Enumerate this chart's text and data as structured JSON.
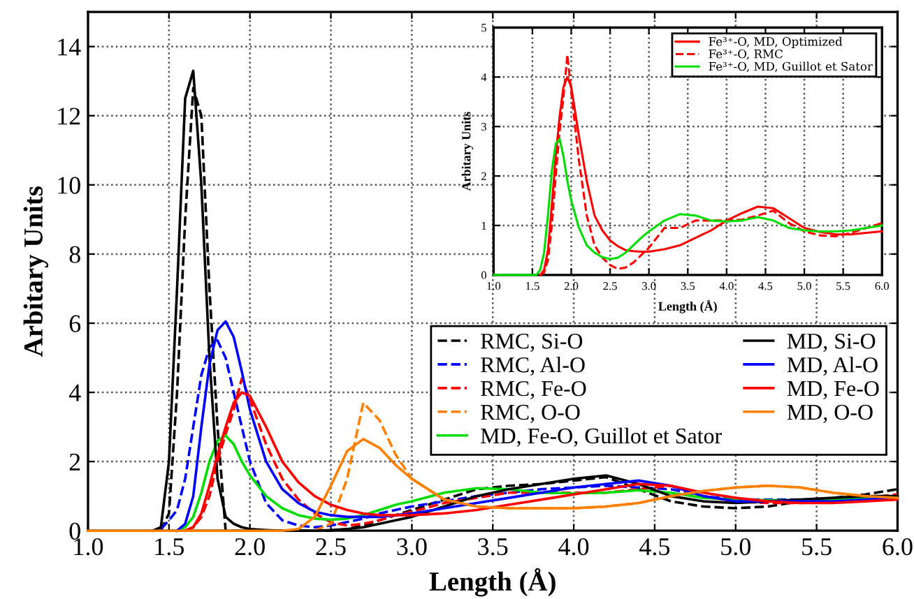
{
  "chart_data": [
    {
      "type": "line",
      "xlabel": "Length (Å)",
      "ylabel": "Arbitary Units",
      "x": [
        1.0,
        1.4,
        1.45,
        1.5,
        1.55,
        1.6,
        1.65,
        1.7,
        1.75,
        1.8,
        1.85,
        1.9,
        1.95,
        2.0,
        2.1,
        2.2,
        2.3,
        2.4,
        2.5,
        2.6,
        2.7,
        2.8,
        2.9,
        3.0,
        3.2,
        3.4,
        3.6,
        3.8,
        4.0,
        4.2,
        4.4,
        4.6,
        4.8,
        5.0,
        5.2,
        5.4,
        5.6,
        5.8,
        6.0
      ],
      "series": [
        {
          "name": "RMC, Si-O",
          "color": "#000000",
          "line_style": "dashed",
          "values": [
            null,
            null,
            0,
            0.5,
            4,
            9,
            12.8,
            12,
            7,
            3,
            0,
            0,
            0,
            0,
            0,
            0,
            0,
            0,
            0,
            0.05,
            0.15,
            0.3,
            0.45,
            0.6,
            0.9,
            1.2,
            1.3,
            1.35,
            1.45,
            1.55,
            1.2,
            0.85,
            0.7,
            0.65,
            0.7,
            0.85,
            0.95,
            1.05,
            1.2
          ]
        },
        {
          "name": "RMC, Al-O",
          "color": "#0000ff",
          "line_style": "dashed",
          "values": [
            null,
            null,
            0.05,
            0.3,
            0.6,
            1.5,
            3,
            4.5,
            5.3,
            5.5,
            5,
            4,
            3,
            2,
            0.8,
            0.3,
            0.15,
            0.1,
            0.15,
            0.25,
            0.35,
            0.5,
            0.6,
            0.7,
            0.85,
            1.0,
            1.1,
            1.2,
            1.25,
            1.3,
            1.25,
            1.2,
            1.0,
            0.9,
            0.9,
            0.9,
            0.9,
            0.9,
            0.9
          ]
        },
        {
          "name": "RMC, Fe-O",
          "color": "#ff0000",
          "line_style": "dashed",
          "values": [
            null,
            null,
            null,
            null,
            null,
            0,
            0.1,
            0.4,
            1.0,
            2.0,
            2.8,
            3.5,
            4.4,
            3.8,
            2.5,
            1.5,
            0.9,
            0.5,
            0.25,
            0.15,
            0.2,
            0.3,
            0.45,
            0.55,
            0.8,
            0.95,
            1.1,
            1.1,
            1.1,
            1.1,
            1.2,
            1.3,
            1.0,
            0.85,
            0.8,
            0.8,
            0.85,
            0.95,
            1.05
          ]
        },
        {
          "name": "RMC, O-O",
          "color": "#ff8000",
          "line_style": "dashed",
          "values": [
            null,
            null,
            null,
            null,
            null,
            null,
            null,
            null,
            null,
            null,
            null,
            null,
            null,
            null,
            null,
            null,
            null,
            0,
            0.2,
            1.5,
            3.7,
            3.2,
            2.2,
            1.5,
            0.9,
            0.7,
            0.65,
            0.65,
            0.65,
            0.7,
            0.8,
            1.0,
            1.15,
            1.25,
            1.3,
            1.25,
            1.1,
            1.0,
            0.95
          ]
        },
        {
          "name": "MD, Fe-O, Guillot et Sator",
          "color": "#00dd00",
          "line_style": "solid",
          "values": [
            null,
            null,
            null,
            null,
            0,
            0.1,
            0.4,
            1.1,
            2.0,
            2.6,
            2.75,
            2.5,
            2.0,
            1.6,
            1.0,
            0.65,
            0.45,
            0.35,
            0.32,
            0.35,
            0.45,
            0.6,
            0.75,
            0.85,
            1.1,
            1.23,
            1.2,
            1.1,
            1.08,
            1.1,
            1.17,
            1.1,
            0.95,
            0.9,
            0.88,
            0.88,
            0.9,
            0.95,
            1.0
          ]
        },
        {
          "name": "MD, Si-O",
          "color": "#000000",
          "line_style": "solid",
          "values": [
            null,
            0,
            0.1,
            2.0,
            7,
            12.5,
            13.3,
            10,
            5,
            1.5,
            0.4,
            0.2,
            0.1,
            0.05,
            0.02,
            0,
            0,
            0,
            0.02,
            0.05,
            0.1,
            0.2,
            0.3,
            0.4,
            0.7,
            1.0,
            1.2,
            1.35,
            1.5,
            1.6,
            1.35,
            1.0,
            0.85,
            0.8,
            0.85,
            0.9,
            0.95,
            1.0,
            1.0
          ]
        },
        {
          "name": "MD, Al-O",
          "color": "#0000ff",
          "line_style": "solid",
          "values": [
            null,
            null,
            null,
            null,
            0,
            0.2,
            1,
            3,
            4.8,
            5.8,
            6.05,
            5.6,
            4.6,
            3.5,
            2.0,
            1.2,
            0.8,
            0.55,
            0.45,
            0.4,
            0.4,
            0.4,
            0.45,
            0.5,
            0.65,
            0.8,
            0.95,
            1.1,
            1.25,
            1.35,
            1.45,
            1.3,
            1.0,
            0.85,
            0.85,
            0.85,
            0.85,
            0.9,
            0.95
          ]
        },
        {
          "name": "MD, Fe-O",
          "color": "#ff0000",
          "line_style": "solid",
          "values": [
            null,
            null,
            null,
            null,
            null,
            0,
            0.1,
            0.5,
            1.3,
            2.2,
            3.0,
            3.7,
            4.0,
            3.9,
            3.0,
            2.0,
            1.4,
            1.0,
            0.75,
            0.6,
            0.5,
            0.45,
            0.45,
            0.45,
            0.5,
            0.6,
            0.75,
            0.9,
            1.05,
            1.2,
            1.35,
            1.3,
            1.1,
            0.95,
            0.85,
            0.8,
            0.8,
            0.85,
            0.9
          ]
        },
        {
          "name": "MD, O-O",
          "color": "#ff8000",
          "line_style": "solid",
          "values": [
            0,
            0,
            0,
            0,
            0,
            0,
            0,
            0,
            0,
            0,
            0,
            0,
            0,
            0,
            0,
            0,
            0.05,
            0.4,
            1.3,
            2.3,
            2.65,
            2.4,
            1.9,
            1.5,
            0.9,
            0.7,
            0.65,
            0.65,
            0.65,
            0.7,
            0.8,
            1.0,
            1.15,
            1.25,
            1.3,
            1.25,
            1.1,
            1.0,
            0.95
          ]
        }
      ],
      "xlim": [
        1,
        6
      ],
      "ylim": [
        0,
        15
      ],
      "xticks": [
        {
          "value": 1,
          "label": "1.0"
        },
        1.5,
        {
          "value": 2,
          "label": "2.0"
        },
        2.5,
        {
          "value": 3,
          "label": "3.0"
        },
        3.5,
        {
          "value": 4,
          "label": "4.0"
        },
        4.5,
        {
          "value": 5,
          "label": "5.0"
        },
        5.5,
        {
          "value": 6,
          "label": "6.0"
        }
      ],
      "yticks": [
        0,
        2,
        4,
        6,
        8,
        10,
        12,
        14
      ],
      "grid": true,
      "legend": "right"
    },
    {
      "type": "line",
      "xlabel": "Length (Å)",
      "ylabel": "Arbitary Units",
      "x": [
        1.0,
        1.4,
        1.45,
        1.5,
        1.55,
        1.6,
        1.65,
        1.7,
        1.75,
        1.8,
        1.85,
        1.9,
        1.95,
        2.0,
        2.1,
        2.2,
        2.3,
        2.4,
        2.5,
        2.6,
        2.7,
        2.8,
        2.9,
        3.0,
        3.2,
        3.4,
        3.6,
        3.8,
        4.0,
        4.2,
        4.4,
        4.6,
        4.8,
        5.0,
        5.2,
        5.4,
        5.6,
        5.8,
        6.0
      ],
      "series": [
        {
          "name": "Fe³⁺-O, MD, Optimized",
          "color": "#ff0000",
          "line_style": "solid",
          "values": [
            null,
            null,
            null,
            null,
            null,
            0,
            0.1,
            0.5,
            1.4,
            2.4,
            3.2,
            3.8,
            4.0,
            3.8,
            2.8,
            1.9,
            1.2,
            0.9,
            0.7,
            0.58,
            0.5,
            0.48,
            0.47,
            0.47,
            0.52,
            0.6,
            0.75,
            0.9,
            1.1,
            1.25,
            1.38,
            1.35,
            1.15,
            0.95,
            0.87,
            0.82,
            0.82,
            0.85,
            0.88
          ]
        },
        {
          "name": "Fe³⁺-O, RMC",
          "color": "#ff0000",
          "line_style": "dashed",
          "values": [
            null,
            null,
            null,
            null,
            null,
            0,
            0.05,
            0.3,
            1.0,
            2.0,
            2.9,
            3.6,
            4.45,
            3.7,
            2.3,
            1.2,
            0.6,
            0.35,
            0.2,
            0.12,
            0.15,
            0.25,
            0.4,
            0.55,
            0.95,
            0.95,
            1.1,
            1.1,
            1.1,
            1.12,
            1.2,
            1.3,
            1.05,
            0.88,
            0.8,
            0.78,
            0.85,
            0.95,
            1.05
          ]
        },
        {
          "name": "Fe³⁺-O, MD, Guillot et Sator",
          "color": "#00dd00",
          "line_style": "solid",
          "values": [
            0,
            0,
            0,
            0,
            0,
            0.1,
            0.45,
            1.2,
            2.1,
            2.65,
            2.75,
            2.4,
            1.9,
            1.5,
            0.95,
            0.6,
            0.45,
            0.36,
            0.32,
            0.35,
            0.45,
            0.6,
            0.75,
            0.88,
            1.1,
            1.23,
            1.2,
            1.1,
            1.08,
            1.1,
            1.17,
            1.1,
            0.95,
            0.9,
            0.88,
            0.88,
            0.9,
            0.95,
            1.0
          ]
        }
      ],
      "xlim": [
        1,
        6
      ],
      "ylim": [
        0,
        5
      ],
      "xticks": [
        {
          "value": 1,
          "label": "1.0"
        },
        1.5,
        {
          "value": 2,
          "label": "2.0"
        },
        2.5,
        {
          "value": 3,
          "label": "3.0"
        },
        3.5,
        {
          "value": 4,
          "label": "4.0"
        },
        4.5,
        {
          "value": 5,
          "label": "5.0"
        },
        5.5,
        {
          "value": 6,
          "label": "6.0"
        }
      ],
      "yticks": [
        0,
        1,
        2,
        3,
        4,
        5
      ],
      "grid": true,
      "legend": "top right"
    }
  ]
}
